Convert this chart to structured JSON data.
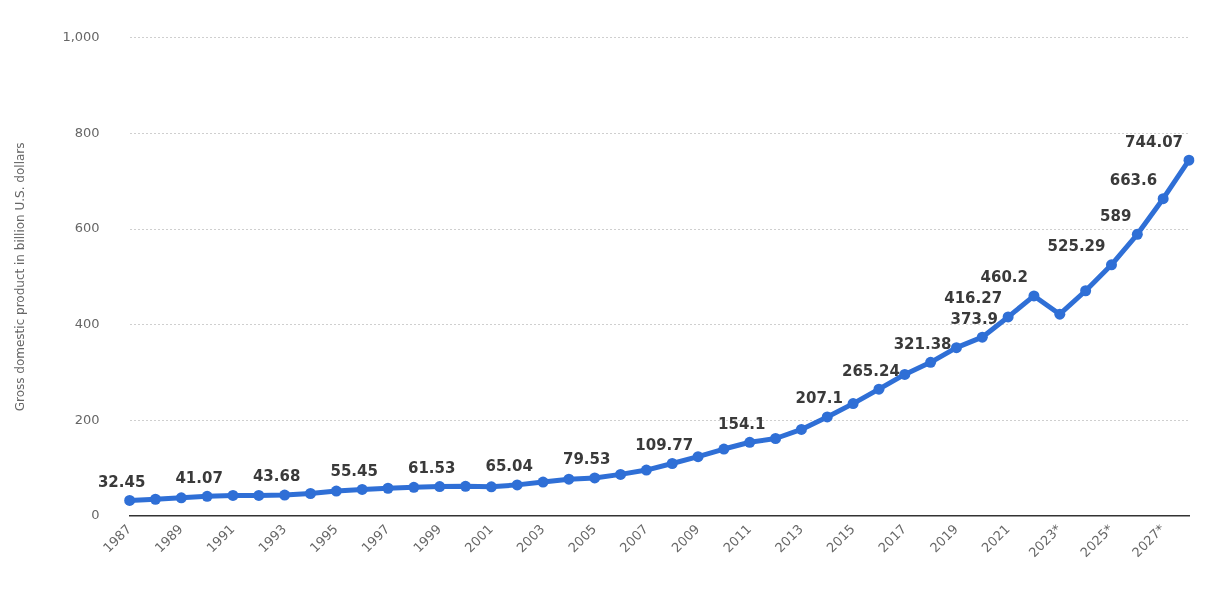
{
  "chart_data": {
    "type": "line",
    "ylabel": "Gross domestic product in billion U.S. dollars",
    "categories": [
      "1987",
      null,
      "1989",
      null,
      "1991",
      null,
      "1993",
      null,
      "1995",
      null,
      "1997",
      null,
      "1999",
      null,
      "2001",
      null,
      "2003",
      null,
      "2005",
      null,
      "2007",
      null,
      "2009",
      null,
      "2011",
      null,
      "2013",
      null,
      "2015",
      null,
      "2017",
      null,
      "2019",
      null,
      "2021",
      null,
      "2023*",
      null,
      "2025*",
      null,
      "2027*",
      null
    ],
    "series": [
      {
        "color": "#2f6fd6",
        "values": [
          32.45,
          35,
          38,
          41.07,
          43,
          43,
          43.68,
          47,
          52,
          55.45,
          58,
          60,
          61.53,
          62,
          61,
          65.04,
          71,
          77,
          79.53,
          87,
          96,
          109.77,
          124,
          140,
          154.1,
          162,
          181,
          207.1,
          235,
          265.24,
          296,
          321.38,
          352,
          373.9,
          416.27,
          460.2,
          422,
          471,
          525.29,
          589,
          663.6,
          744.07
        ],
        "value_labels": [
          "32.45",
          null,
          null,
          "41.07",
          null,
          null,
          "43.68",
          null,
          null,
          "55.45",
          null,
          null,
          "61.53",
          null,
          null,
          "65.04",
          null,
          null,
          "79.53",
          null,
          null,
          "109.77",
          null,
          null,
          "154.1",
          null,
          null,
          "207.1",
          null,
          "265.24",
          null,
          "321.38",
          null,
          "373.9",
          "416.27",
          "460.2",
          null,
          null,
          "525.29",
          "589",
          "663.6",
          "744.07"
        ]
      }
    ],
    "ylim": [
      0,
      1000
    ],
    "yticks": [
      0,
      200,
      400,
      600,
      800,
      {
        "value": 1000,
        "label": "1,000"
      }
    ],
    "grid": "y",
    "marker": "circle",
    "line_style": "solid",
    "legend": false
  }
}
